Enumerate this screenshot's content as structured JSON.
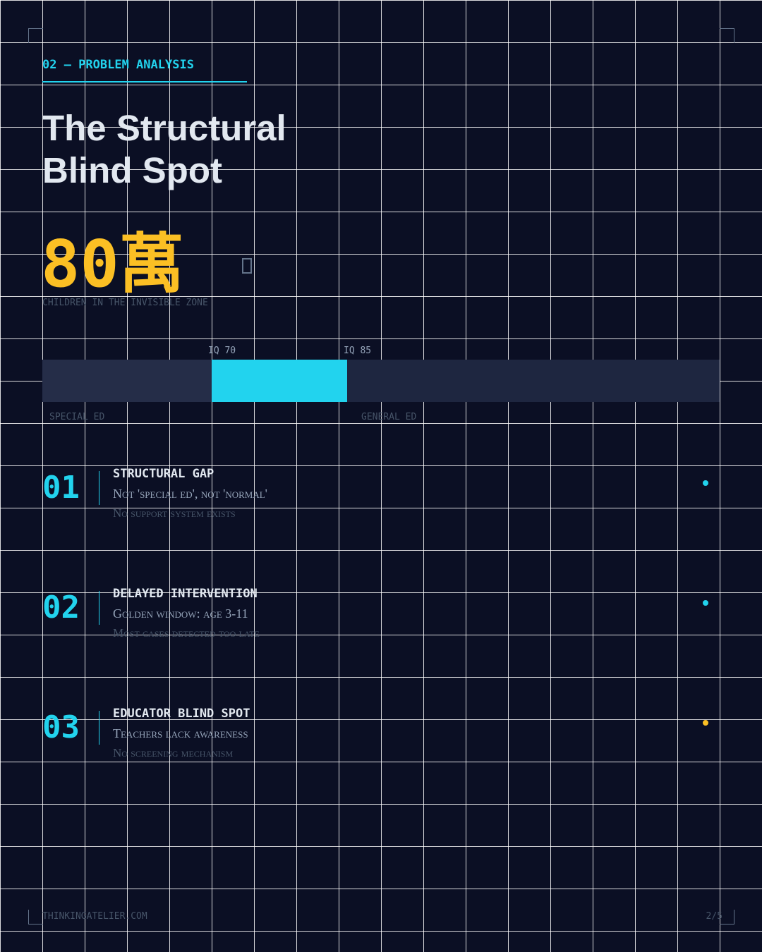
{
  "header": {
    "section": "02 — PROBLEM ANALYSIS"
  },
  "title": {
    "lines": [
      "The Structural",
      "Blind Spot"
    ]
  },
  "stat": {
    "value": "80萬",
    "label": "CHILDREN IN THE INVISIBLE ZONE"
  },
  "spectrum": {
    "markers": [
      "IQ 70",
      "IQ 85"
    ],
    "zones": [
      "SPECIAL ED",
      "GENERAL ED"
    ]
  },
  "items": [
    {
      "number": "01",
      "title": "STRUCTURAL GAP",
      "line1": "Not 'special ed', not 'normal'",
      "line2": "No support system exists"
    },
    {
      "number": "02",
      "title": "DELAYED INTERVENTION",
      "line1": "Golden window: age 3-11",
      "line2": "Most cases detected too late"
    },
    {
      "number": "03",
      "title": "EDUCATOR BLIND SPOT",
      "line1": "Teachers lack awareness",
      "line2": "No screening mechanism"
    }
  ],
  "footer": {
    "site": "THINKINGATELIER.COM",
    "page": "2/5"
  }
}
